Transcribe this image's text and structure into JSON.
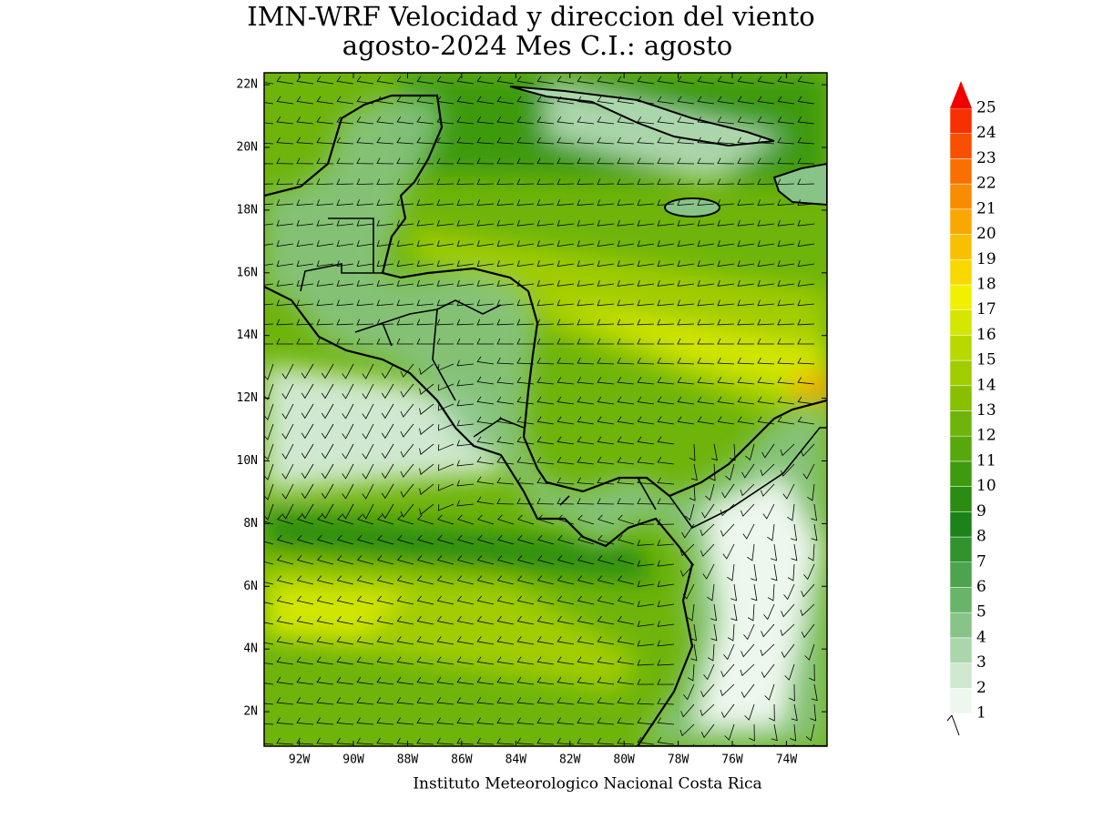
{
  "title": [
    "IMN-WRF Velocidad y direccion del viento",
    "agosto-2024 Mes C.I.: agosto"
  ],
  "footer": "Instituto Meteorologico Nacional Costa Rica",
  "map": {
    "xlim": [
      -93.3,
      -72.5
    ],
    "ylim": [
      0.9,
      22.38
    ],
    "xticks": [
      {
        "value": -92,
        "label": "92W"
      },
      {
        "value": -90,
        "label": "90W"
      },
      {
        "value": -88,
        "label": "88W"
      },
      {
        "value": -86,
        "label": "86W"
      },
      {
        "value": -84,
        "label": "84W"
      },
      {
        "value": -82,
        "label": "82W"
      },
      {
        "value": -80,
        "label": "80W"
      },
      {
        "value": -78,
        "label": "78W"
      },
      {
        "value": -76,
        "label": "76W"
      },
      {
        "value": -74,
        "label": "74W"
      }
    ],
    "yticks": [
      {
        "value": 22,
        "label": "22N"
      },
      {
        "value": 20,
        "label": "20N"
      },
      {
        "value": 18,
        "label": "18N"
      },
      {
        "value": 16,
        "label": "16N"
      },
      {
        "value": 14,
        "label": "14N"
      },
      {
        "value": 12,
        "label": "12N"
      },
      {
        "value": 10,
        "label": "10N"
      },
      {
        "value": 8,
        "label": "8N"
      },
      {
        "value": 6,
        "label": "6N"
      },
      {
        "value": 4,
        "label": "4N"
      },
      {
        "value": 2,
        "label": "2N"
      }
    ]
  },
  "colorbar": {
    "levels": [
      1,
      2,
      3,
      4,
      5,
      6,
      7,
      8,
      9,
      10,
      11,
      12,
      13,
      14,
      15,
      16,
      17,
      18,
      19,
      20,
      21,
      22,
      23,
      24,
      25
    ],
    "colors": [
      "#eef7ee",
      "#cfe8cf",
      "#abd6ab",
      "#88c488",
      "#68b468",
      "#4ea44e",
      "#32922e",
      "#1c821a",
      "#2a8c10",
      "#3e9a0e",
      "#56a80c",
      "#6eb40a",
      "#88c000",
      "#a0cc00",
      "#b8d800",
      "#d2e600",
      "#f0f000",
      "#f8d800",
      "#f8c000",
      "#f8a800",
      "#f88c00",
      "#f87000",
      "#f85000",
      "#f83000",
      "#f00000"
    ]
  }
}
